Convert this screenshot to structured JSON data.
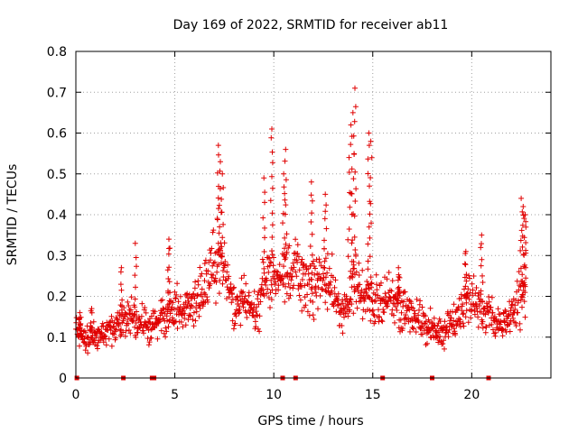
{
  "chart_data": {
    "type": "scatter",
    "title": "Day 169 of 2022, SRMTID for receiver ab11",
    "xlabel": "GPS time / hours",
    "ylabel": "SRMTID / TECUs",
    "xlim": [
      0,
      24
    ],
    "ylim": [
      0,
      0.8
    ],
    "x_ticks": [
      0,
      5,
      10,
      15,
      20
    ],
    "x_tick_labels": [
      "0",
      "5",
      "10",
      "15",
      "20"
    ],
    "y_ticks": [
      0,
      0.1,
      0.2,
      0.3,
      0.4,
      0.5,
      0.6,
      0.7,
      0.8
    ],
    "y_tick_labels": [
      "0",
      "0.1",
      "0.2",
      "0.3",
      "0.4",
      "0.5",
      "0.6",
      "0.7",
      "0.8"
    ],
    "grid": true,
    "marker": "plus",
    "color": "#e00000",
    "series": [
      {
        "name": "SRMTID",
        "profile": {
          "x": [
            0,
            0.5,
            1,
            1.5,
            2,
            2.5,
            3,
            3.5,
            4,
            4.5,
            5,
            5.5,
            6,
            6.5,
            7,
            7.3,
            7.6,
            8,
            8.5,
            9,
            9.5,
            10,
            10.5,
            11,
            11.5,
            12,
            12.5,
            13,
            13.5,
            14,
            14.5,
            15,
            15.5,
            16,
            16.5,
            17,
            17.5,
            18,
            18.5,
            19,
            19.5,
            20,
            20.5,
            21,
            21.5,
            22,
            22.5
          ],
          "y": [
            0.12,
            0.1,
            0.1,
            0.11,
            0.13,
            0.15,
            0.14,
            0.13,
            0.13,
            0.15,
            0.17,
            0.18,
            0.19,
            0.22,
            0.28,
            0.3,
            0.22,
            0.18,
            0.2,
            0.16,
            0.22,
            0.25,
            0.26,
            0.27,
            0.25,
            0.23,
            0.25,
            0.22,
            0.15,
            0.24,
            0.2,
            0.19,
            0.18,
            0.2,
            0.17,
            0.15,
            0.13,
            0.12,
            0.11,
            0.14,
            0.17,
            0.2,
            0.17,
            0.15,
            0.13,
            0.17,
            0.2
          ]
        },
        "peaks": [
          {
            "x": 0.2,
            "y": 0.16
          },
          {
            "x": 0.8,
            "y": 0.17
          },
          {
            "x": 2.3,
            "y": 0.27
          },
          {
            "x": 3.0,
            "y": 0.33
          },
          {
            "x": 4.7,
            "y": 0.34
          },
          {
            "x": 7.2,
            "y": 0.57
          },
          {
            "x": 7.3,
            "y": 0.53
          },
          {
            "x": 7.4,
            "y": 0.5
          },
          {
            "x": 9.9,
            "y": 0.61
          },
          {
            "x": 9.5,
            "y": 0.49
          },
          {
            "x": 10.6,
            "y": 0.56
          },
          {
            "x": 10.5,
            "y": 0.5
          },
          {
            "x": 11.9,
            "y": 0.48
          },
          {
            "x": 12.6,
            "y": 0.45
          },
          {
            "x": 13.8,
            "y": 0.54
          },
          {
            "x": 13.9,
            "y": 0.62
          },
          {
            "x": 14.0,
            "y": 0.65
          },
          {
            "x": 14.1,
            "y": 0.71
          },
          {
            "x": 14.8,
            "y": 0.6
          },
          {
            "x": 14.9,
            "y": 0.58
          },
          {
            "x": 16.3,
            "y": 0.27
          },
          {
            "x": 19.7,
            "y": 0.31
          },
          {
            "x": 20.5,
            "y": 0.35
          },
          {
            "x": 22.5,
            "y": 0.44
          },
          {
            "x": 22.6,
            "y": 0.42
          },
          {
            "x": 22.7,
            "y": 0.4
          }
        ],
        "gaps_at_zero": [
          0.05,
          2.4,
          3.85,
          3.95,
          10.45,
          11.1,
          15.5,
          18,
          20.85
        ]
      }
    ]
  }
}
